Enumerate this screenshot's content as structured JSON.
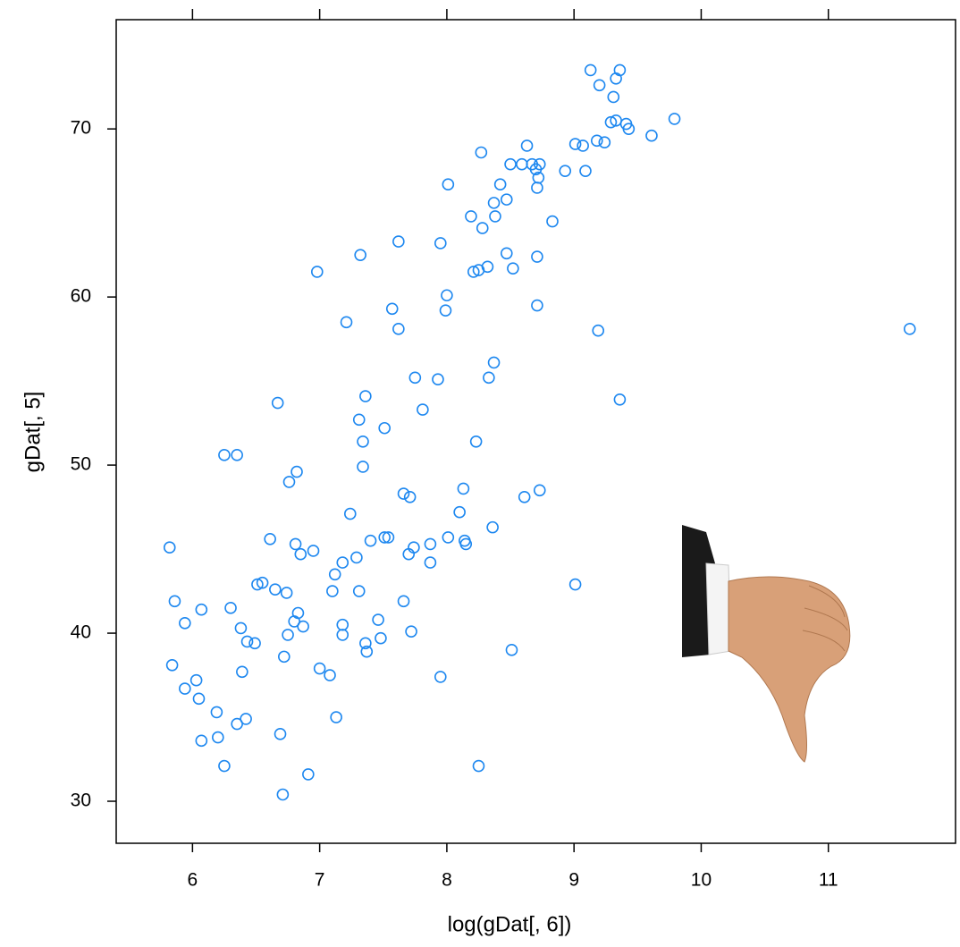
{
  "chart_data": {
    "type": "scatter",
    "x_label": "log(gDat[, 6])",
    "y_label": "gDat[, 5]",
    "color": "#1e88f0",
    "xlim": [
      5.4,
      12.0
    ],
    "ylim": [
      27.5,
      76.5
    ],
    "xticks": [
      6,
      7,
      8,
      9,
      10,
      11
    ],
    "yticks": [
      30,
      40,
      50,
      60,
      70
    ],
    "x": [
      9.13,
      9.36,
      9.33,
      9.2,
      9.31,
      9.29,
      9.33,
      9.41,
      9.43,
      9.79,
      9.61,
      9.18,
      9.24,
      9.01,
      9.07,
      8.63,
      8.27,
      8.5,
      8.59,
      8.67,
      8.73,
      8.7,
      8.93,
      9.09,
      8.72,
      8.71,
      8.01,
      8.42,
      8.47,
      8.37,
      8.19,
      8.38,
      8.28,
      8.83,
      7.62,
      7.95,
      7.32,
      8.47,
      8.71,
      8.32,
      8.52,
      8.21,
      8.25,
      6.98,
      8.0,
      7.99,
      7.57,
      8.71,
      7.21,
      7.62,
      9.19,
      11.64,
      8.37,
      7.75,
      7.93,
      8.33,
      7.36,
      9.36,
      6.67,
      7.81,
      7.31,
      7.51,
      7.34,
      8.23,
      6.25,
      6.35,
      6.82,
      7.34,
      6.76,
      8.13,
      7.66,
      7.71,
      8.73,
      8.61,
      7.24,
      8.1,
      8.36,
      6.61,
      7.4,
      7.51,
      7.54,
      8.01,
      5.82,
      6.81,
      7.74,
      7.87,
      8.14,
      8.15,
      6.85,
      6.95,
      7.7,
      7.29,
      7.18,
      7.87,
      7.12,
      6.51,
      6.55,
      9.01,
      6.65,
      6.74,
      7.1,
      7.31,
      5.86,
      7.66,
      6.3,
      6.07,
      6.83,
      6.8,
      5.94,
      7.18,
      7.46,
      6.87,
      6.38,
      7.72,
      6.75,
      7.18,
      6.43,
      6.49,
      7.48,
      7.36,
      7.37,
      8.51,
      6.72,
      5.84,
      6.39,
      7.0,
      7.08,
      7.95,
      6.03,
      5.94,
      6.05,
      6.19,
      7.13,
      6.42,
      6.35,
      6.2,
      6.07,
      6.69,
      6.25,
      8.25,
      6.91,
      6.71
    ],
    "values": [
      73.5,
      73.5,
      73.0,
      72.6,
      71.9,
      70.4,
      70.5,
      70.3,
      70.0,
      70.6,
      69.6,
      69.3,
      69.2,
      69.1,
      69.0,
      69.0,
      68.6,
      67.9,
      67.9,
      67.9,
      67.9,
      67.6,
      67.5,
      67.5,
      67.1,
      66.5,
      66.7,
      66.7,
      65.8,
      65.6,
      64.8,
      64.8,
      64.1,
      64.5,
      63.3,
      63.2,
      62.5,
      62.6,
      62.4,
      61.8,
      61.7,
      61.5,
      61.6,
      61.5,
      60.1,
      59.2,
      59.3,
      59.5,
      58.5,
      58.1,
      58.0,
      58.1,
      56.1,
      55.2,
      55.1,
      55.2,
      54.1,
      53.9,
      53.7,
      53.3,
      52.7,
      52.2,
      51.4,
      51.4,
      50.6,
      50.6,
      49.6,
      49.9,
      49.0,
      48.6,
      48.3,
      48.1,
      48.5,
      48.1,
      47.1,
      47.2,
      46.3,
      45.6,
      45.5,
      45.7,
      45.7,
      45.7,
      45.1,
      45.3,
      45.1,
      45.3,
      45.5,
      45.3,
      44.7,
      44.9,
      44.7,
      44.5,
      44.2,
      44.2,
      43.5,
      42.9,
      43.0,
      42.9,
      42.6,
      42.4,
      42.5,
      42.5,
      41.9,
      41.9,
      41.5,
      41.4,
      41.2,
      40.7,
      40.6,
      40.5,
      40.8,
      40.4,
      40.3,
      40.1,
      39.9,
      39.9,
      39.5,
      39.4,
      39.7,
      39.4,
      38.9,
      39.0,
      38.6,
      38.1,
      37.7,
      37.9,
      37.5,
      37.4,
      37.2,
      36.7,
      36.1,
      35.3,
      35.0,
      34.9,
      34.6,
      33.8,
      33.6,
      34.0,
      32.1,
      32.1,
      31.6,
      30.4
    ]
  }
}
